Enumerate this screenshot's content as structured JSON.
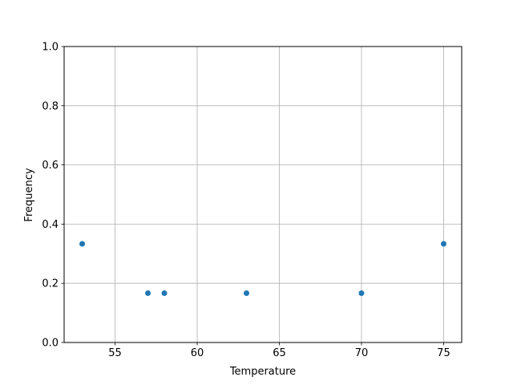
{
  "chart_data": {
    "type": "scatter",
    "title": "",
    "xlabel": "Temperature",
    "ylabel": "Frequency",
    "x": [
      53,
      57,
      58,
      63,
      70,
      75
    ],
    "y": [
      0.3333,
      0.1667,
      0.1667,
      0.1667,
      0.1667,
      0.3333
    ],
    "xlim": [
      51.9,
      76.1
    ],
    "ylim": [
      0.0,
      1.0
    ],
    "xticks": [
      55,
      60,
      65,
      70,
      75
    ],
    "xtick_labels": [
      "55",
      "60",
      "65",
      "70",
      "75"
    ],
    "yticks": [
      0.0,
      0.2,
      0.4,
      0.6,
      0.8,
      1.0
    ],
    "ytick_labels": [
      "0.0",
      "0.2",
      "0.4",
      "0.6",
      "0.8",
      "1.0"
    ],
    "grid": true,
    "marker_color": "#1f77b4"
  }
}
